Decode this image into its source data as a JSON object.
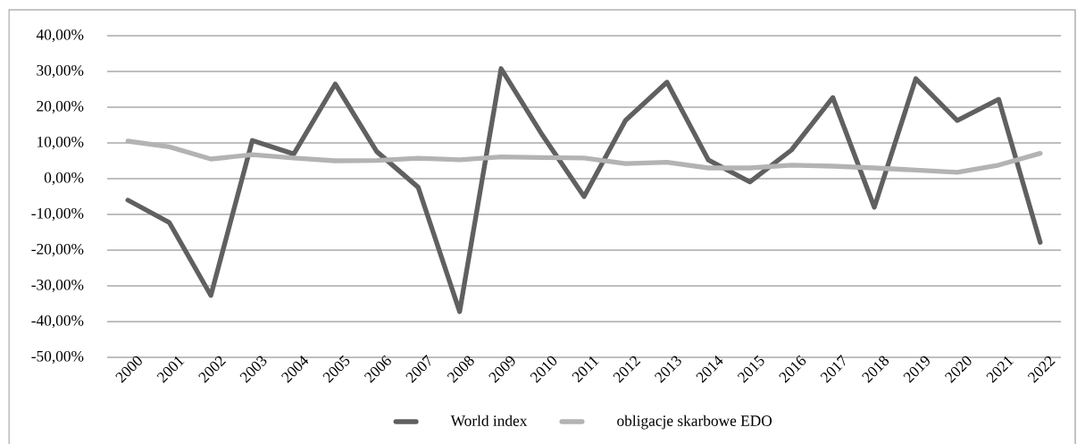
{
  "chart_data": {
    "type": "line",
    "categories": [
      "2000",
      "2001",
      "2002",
      "2003",
      "2004",
      "2005",
      "2006",
      "2007",
      "2008",
      "2009",
      "2010",
      "2011",
      "2012",
      "2013",
      "2014",
      "2015",
      "2016",
      "2017",
      "2018",
      "2019",
      "2020",
      "2021",
      "2022"
    ],
    "series": [
      {
        "name": "World index",
        "color": "#606060",
        "values": [
          -6,
          -12.3,
          -32.7,
          10.7,
          6.9,
          26.5,
          7.6,
          -2.4,
          -37.2,
          30.8,
          12.1,
          -5,
          16.3,
          27,
          5.2,
          -0.9,
          8,
          22.7,
          -8,
          28,
          16.3,
          22.2,
          -17.8
        ]
      },
      {
        "name": "obligacje skarbowe EDO",
        "color": "#b3b3b3",
        "values": [
          10.5,
          8.9,
          5.5,
          6.7,
          5.8,
          5,
          5.1,
          5.7,
          5.3,
          6.1,
          5.9,
          5.8,
          4.2,
          4.6,
          3,
          3,
          3.8,
          3.5,
          3,
          2.4,
          1.8,
          3.8,
          7.1
        ]
      }
    ],
    "ylim": [
      -50,
      40
    ],
    "yticks": [
      {
        "value": -50,
        "label": "-50,00%"
      },
      {
        "value": -40,
        "label": "-40,00%"
      },
      {
        "value": -30,
        "label": "-30,00%"
      },
      {
        "value": -20,
        "label": "-20,00%"
      },
      {
        "value": -10,
        "label": "-10,00%"
      },
      {
        "value": 0,
        "label": "0,00%"
      },
      {
        "value": 10,
        "label": "10,00%"
      },
      {
        "value": 20,
        "label": "20,00%"
      },
      {
        "value": 30,
        "label": "30,00%"
      },
      {
        "value": 40,
        "label": "40,00%"
      }
    ],
    "grid": "y",
    "legend": "bottom",
    "marker": "none",
    "line_style": "solid"
  }
}
